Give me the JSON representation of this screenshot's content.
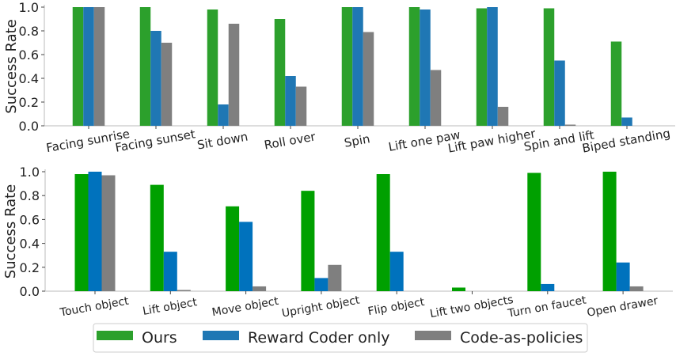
{
  "colors": {
    "Ours": "#2ca02c",
    "Reward Coder only": "#1f77b4",
    "Code-as-policies": "#7f7f7f"
  },
  "legend": {
    "placement": "bottom-center",
    "items": [
      "Ours",
      "Reward Coder only",
      "Code-as-policies"
    ]
  },
  "chart_data": [
    {
      "type": "bar",
      "ylabel": "Success Rate",
      "ylim": [
        0,
        1.0
      ],
      "yticks": [
        "0.0",
        "0.2",
        "0.4",
        "0.6",
        "0.8",
        "1.0"
      ],
      "grid": false,
      "categories": [
        "Facing sunrise",
        "Facing sunset",
        "Sit down",
        "Roll over",
        "Spin",
        "Lift one paw",
        "Lift paw higher",
        "Spin and lift",
        "Biped standing"
      ],
      "series": [
        {
          "name": "Ours",
          "values": [
            1.0,
            1.0,
            0.98,
            0.9,
            1.0,
            1.0,
            0.99,
            0.99,
            0.71
          ]
        },
        {
          "name": "Reward Coder only",
          "values": [
            1.0,
            0.8,
            0.18,
            0.42,
            1.0,
            0.98,
            1.0,
            0.55,
            0.07
          ]
        },
        {
          "name": "Code-as-policies",
          "values": [
            1.0,
            0.7,
            0.86,
            0.33,
            0.79,
            0.47,
            0.16,
            0.01,
            0.0
          ]
        }
      ]
    },
    {
      "type": "bar",
      "ylabel": "Success Rate",
      "ylim": [
        0,
        1.0
      ],
      "yticks": [
        "0.0",
        "0.2",
        "0.4",
        "0.6",
        "0.8",
        "1.0"
      ],
      "grid": false,
      "categories": [
        "Touch object",
        "Lift object",
        "Move object",
        "Upright object",
        "Flip object",
        "Lift two objects",
        "Turn on faucet",
        "Open drawer"
      ],
      "series": [
        {
          "name": "Ours",
          "values": [
            0.98,
            0.89,
            0.71,
            0.84,
            0.98,
            0.03,
            0.99,
            1.0
          ]
        },
        {
          "name": "Reward Coder only",
          "values": [
            1.0,
            0.33,
            0.58,
            0.11,
            0.33,
            0.0,
            0.06,
            0.24
          ]
        },
        {
          "name": "Code-as-policies",
          "values": [
            0.97,
            0.01,
            0.04,
            0.22,
            0.0,
            0.0,
            0.0,
            0.04
          ]
        }
      ]
    }
  ]
}
